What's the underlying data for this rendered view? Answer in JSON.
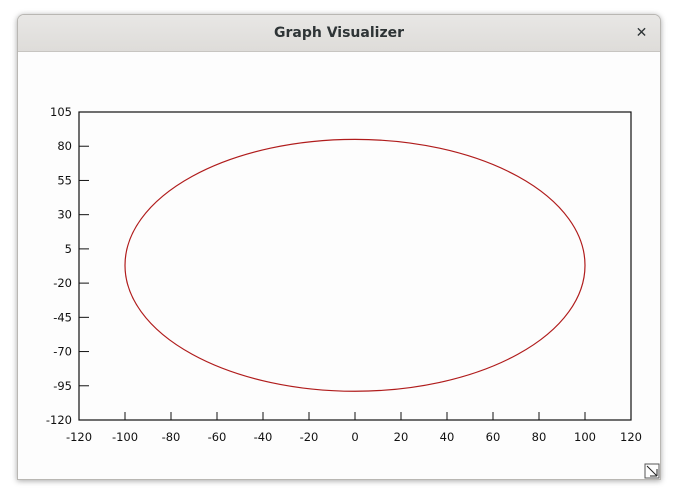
{
  "window": {
    "title": "Graph Visualizer",
    "close_icon": "close-icon",
    "resize_icon": "resize-grip-icon"
  },
  "chart_data": {
    "type": "line",
    "title": "",
    "xlabel": "",
    "ylabel": "",
    "xlim": [
      -120,
      120
    ],
    "ylim": [
      -120,
      105
    ],
    "x_ticks": [
      "-120",
      "-100",
      "-80",
      "-60",
      "-40",
      "-20",
      "0",
      "20",
      "40",
      "60",
      "80",
      "100",
      "120"
    ],
    "y_ticks": [
      "105",
      "80",
      "55",
      "30",
      "5",
      "-20",
      "-45",
      "-70",
      "-95",
      "-120"
    ],
    "grid": false,
    "series": [
      {
        "shape": "ellipse",
        "center": [
          0,
          -7
        ],
        "radius_x": 100,
        "radius_y": 92,
        "color": "#b01c1c"
      }
    ]
  }
}
